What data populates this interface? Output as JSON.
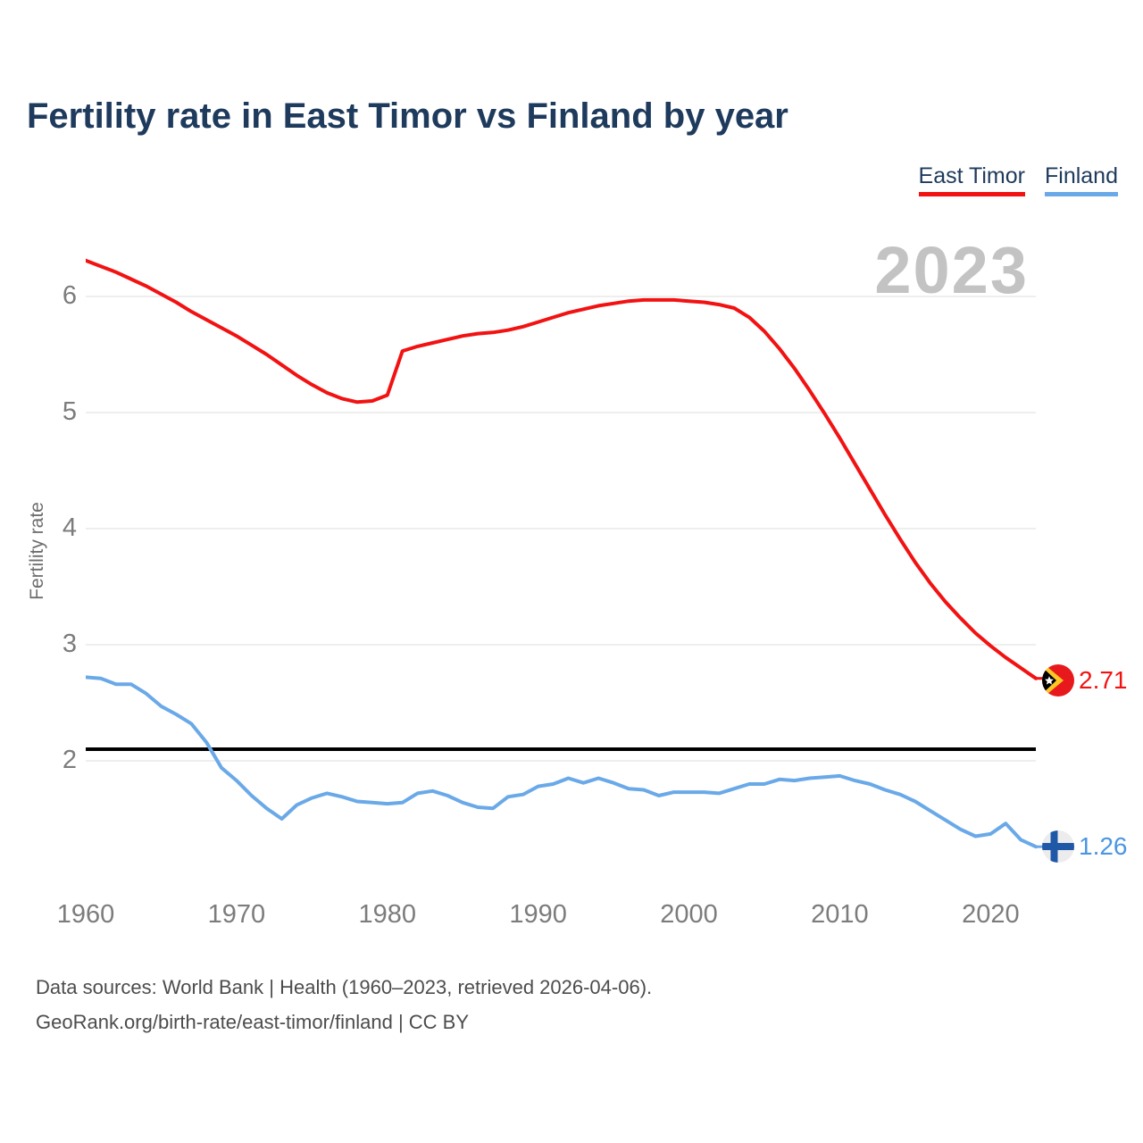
{
  "title": "Fertility rate in East Timor vs Finland by year",
  "legend": [
    {
      "label": "East Timor",
      "color": "#f21212"
    },
    {
      "label": "Finland",
      "color": "#6aa9e8"
    }
  ],
  "watermark": "2023",
  "y_axis_label": "Fertility rate",
  "end_labels": {
    "east_timor": {
      "value": "2.71",
      "color": "#f21212",
      "flag": "east-timor"
    },
    "finland": {
      "value": "1.26",
      "color": "#4b96e1",
      "flag": "finland"
    }
  },
  "source_line1": "Data sources: World Bank | Health (1960–2023, retrieved 2026-04-06).",
  "source_line2": "GeoRank.org/birth-rate/east-timor/finland | CC BY",
  "colors": {
    "title": "#1e3a5c",
    "east_timor_line": "#f21212",
    "finland_line": "#6aa9e8",
    "reference_line": "#000000",
    "gridline": "#e8e8e8",
    "axis_text": "#7c7c7c",
    "watermark": "#c3c3c3",
    "source_text": "#4c4c4c"
  },
  "chart_data": {
    "type": "line",
    "title": "Fertility rate in East Timor vs Finland by year",
    "xlabel": "",
    "ylabel": "Fertility rate",
    "xlim": [
      1960,
      2023
    ],
    "xticks": [
      1960,
      1970,
      1980,
      1990,
      2000,
      2010,
      2020
    ],
    "yticks": [
      2,
      3,
      4,
      5,
      6
    ],
    "grid": "horizontal",
    "legend_position": "top-right",
    "reference_line": {
      "value": 2.1,
      "color": "#000000"
    },
    "x": [
      1960,
      1961,
      1962,
      1963,
      1964,
      1965,
      1966,
      1967,
      1968,
      1969,
      1970,
      1971,
      1972,
      1973,
      1974,
      1975,
      1976,
      1977,
      1978,
      1979,
      1980,
      1981,
      1982,
      1983,
      1984,
      1985,
      1986,
      1987,
      1988,
      1989,
      1990,
      1991,
      1992,
      1993,
      1994,
      1995,
      1996,
      1997,
      1998,
      1999,
      2000,
      2001,
      2002,
      2003,
      2004,
      2005,
      2006,
      2007,
      2008,
      2009,
      2010,
      2011,
      2012,
      2013,
      2014,
      2015,
      2016,
      2017,
      2018,
      2019,
      2020,
      2021,
      2022,
      2023
    ],
    "series": [
      {
        "name": "East Timor",
        "color": "#f21212",
        "end_value": 2.71,
        "values": [
          6.31,
          6.26,
          6.21,
          6.15,
          6.09,
          6.02,
          5.95,
          5.87,
          5.8,
          5.73,
          5.66,
          5.58,
          5.5,
          5.41,
          5.32,
          5.24,
          5.17,
          5.12,
          5.09,
          5.1,
          5.15,
          5.53,
          5.57,
          5.6,
          5.63,
          5.66,
          5.68,
          5.69,
          5.71,
          5.74,
          5.78,
          5.82,
          5.86,
          5.89,
          5.92,
          5.94,
          5.96,
          5.97,
          5.97,
          5.97,
          5.96,
          5.95,
          5.93,
          5.9,
          5.82,
          5.7,
          5.55,
          5.38,
          5.19,
          4.99,
          4.78,
          4.56,
          4.34,
          4.12,
          3.91,
          3.71,
          3.53,
          3.37,
          3.23,
          3.1,
          2.99,
          2.89,
          2.8,
          2.71
        ]
      },
      {
        "name": "Finland",
        "color": "#6aa9e8",
        "end_value": 1.26,
        "values": [
          2.72,
          2.71,
          2.66,
          2.66,
          2.58,
          2.47,
          2.4,
          2.32,
          2.16,
          1.94,
          1.83,
          1.7,
          1.59,
          1.5,
          1.62,
          1.68,
          1.72,
          1.69,
          1.65,
          1.64,
          1.63,
          1.64,
          1.72,
          1.74,
          1.7,
          1.64,
          1.6,
          1.59,
          1.69,
          1.71,
          1.78,
          1.8,
          1.85,
          1.81,
          1.85,
          1.81,
          1.76,
          1.75,
          1.7,
          1.73,
          1.73,
          1.73,
          1.72,
          1.76,
          1.8,
          1.8,
          1.84,
          1.83,
          1.85,
          1.86,
          1.87,
          1.83,
          1.8,
          1.75,
          1.71,
          1.65,
          1.57,
          1.49,
          1.41,
          1.35,
          1.37,
          1.46,
          1.32,
          1.26
        ]
      }
    ]
  }
}
